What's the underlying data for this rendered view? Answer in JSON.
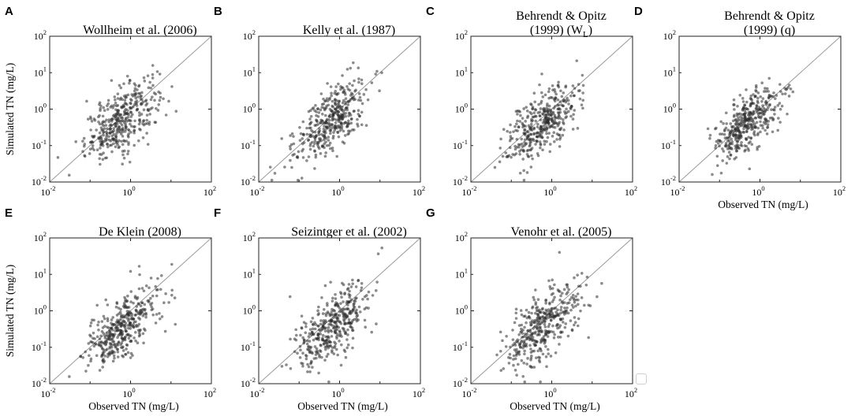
{
  "figure": {
    "shared": {
      "xlabel": "Observed TN (mg/L)",
      "ylabel": "Simulated TN (mg/L)",
      "tick_base": "10",
      "tick_exponents": [
        "-2",
        "0",
        "2"
      ],
      "xscale": "log",
      "yscale": "log",
      "xlim": [
        0.01,
        100
      ],
      "ylim": [
        0.01,
        100
      ]
    },
    "colors": {
      "points": "#2b2b2b",
      "diagonal": "#9a9a9a",
      "frame": "#222222"
    }
  },
  "chart_data": [
    {
      "type": "scatter",
      "letter": "A",
      "title_lines": [
        "Wollheim et al. (2006)"
      ],
      "xlabel": "",
      "ylabel": "Simulated TN (mg/L)",
      "xscale": "log",
      "yscale": "log",
      "xlim": [
        0.01,
        100
      ],
      "ylim": [
        0.01,
        100
      ],
      "reference_line": "1:1",
      "n_points_approx": 400,
      "cluster": {
        "x_center": 0.6,
        "y_center": 0.5,
        "spread_decades": 0.45
      }
    },
    {
      "type": "scatter",
      "letter": "B",
      "title_lines": [
        "Kelly et al. (1987)"
      ],
      "xlabel": "",
      "ylabel": "",
      "xscale": "log",
      "yscale": "log",
      "xlim": [
        0.01,
        100
      ],
      "ylim": [
        0.01,
        100
      ],
      "reference_line": "1:1",
      "n_points_approx": 400,
      "cluster": {
        "x_center": 0.6,
        "y_center": 0.5,
        "spread_decades": 0.45
      }
    },
    {
      "type": "scatter",
      "letter": "C",
      "title_lines": [
        "Behrendt & Opitz",
        "(1999) (W",
        "L",
        ")"
      ],
      "xlabel": "",
      "ylabel": "",
      "xscale": "log",
      "yscale": "log",
      "xlim": [
        0.01,
        100
      ],
      "ylim": [
        0.01,
        100
      ],
      "reference_line": "1:1",
      "n_points_approx": 400,
      "cluster": {
        "x_center": 0.6,
        "y_center": 0.4,
        "spread_decades": 0.45
      }
    },
    {
      "type": "scatter",
      "letter": "D",
      "title_lines": [
        "Behrendt & Opitz",
        "(1999) (q)"
      ],
      "xlabel": "Observed TN (mg/L)",
      "ylabel": "",
      "xscale": "log",
      "yscale": "log",
      "xlim": [
        0.01,
        100
      ],
      "ylim": [
        0.01,
        100
      ],
      "reference_line": "1:1",
      "n_points_approx": 400,
      "cluster": {
        "x_center": 0.5,
        "y_center": 0.4,
        "spread_decades": 0.4
      }
    },
    {
      "type": "scatter",
      "letter": "E",
      "title_lines": [
        "De Klein (2008)"
      ],
      "xlabel": "Observed TN (mg/L)",
      "ylabel": "Simulated TN (mg/L)",
      "xscale": "log",
      "yscale": "log",
      "xlim": [
        0.01,
        100
      ],
      "ylim": [
        0.01,
        100
      ],
      "reference_line": "1:1",
      "n_points_approx": 400,
      "cluster": {
        "x_center": 0.6,
        "y_center": 0.35,
        "spread_decades": 0.45
      }
    },
    {
      "type": "scatter",
      "letter": "F",
      "title_lines": [
        "Seizintger et al. (2002)"
      ],
      "xlabel": "Observed TN (mg/L)",
      "ylabel": "",
      "xscale": "log",
      "yscale": "log",
      "xlim": [
        0.01,
        100
      ],
      "ylim": [
        0.01,
        100
      ],
      "reference_line": "1:1",
      "n_points_approx": 400,
      "cluster": {
        "x_center": 0.6,
        "y_center": 0.4,
        "spread_decades": 0.45
      }
    },
    {
      "type": "scatter",
      "letter": "G",
      "title_lines": [
        "Venohr et al. (2005)"
      ],
      "xlabel": "Observed TN (mg/L)",
      "ylabel": "",
      "xscale": "log",
      "yscale": "log",
      "xlim": [
        0.01,
        100
      ],
      "ylim": [
        0.01,
        100
      ],
      "reference_line": "1:1",
      "n_points_approx": 400,
      "cluster": {
        "x_center": 0.6,
        "y_center": 0.4,
        "spread_decades": 0.45
      }
    }
  ]
}
